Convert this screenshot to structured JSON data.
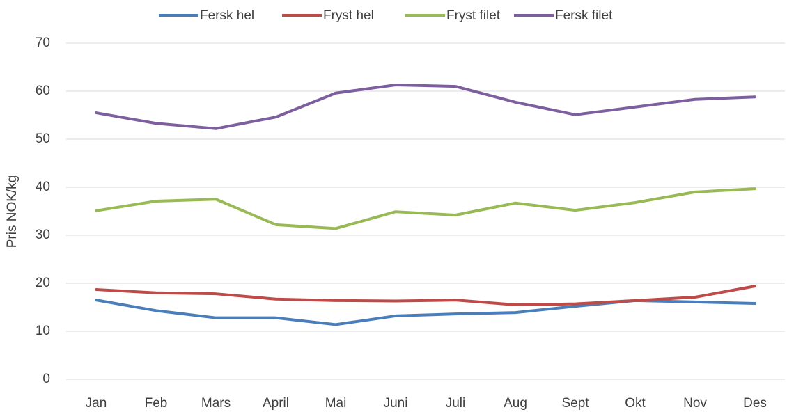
{
  "chart_data": {
    "type": "line",
    "y_label": "Pris NOK/kg",
    "categories": [
      "Jan",
      "Feb",
      "Mars",
      "April",
      "Mai",
      "Juni",
      "Juli",
      "Aug",
      "Sept",
      "Okt",
      "Nov",
      "Des"
    ],
    "series": [
      {
        "name": "Fersk hel",
        "color": "#4a7ebb",
        "values": [
          16.5,
          14.3,
          12.8,
          12.8,
          11.4,
          13.2,
          13.6,
          13.9,
          15.2,
          16.4,
          16.1,
          15.8
        ]
      },
      {
        "name": "Fryst hel",
        "color": "#be4b48",
        "values": [
          18.7,
          18.0,
          17.8,
          16.7,
          16.4,
          16.3,
          16.5,
          15.5,
          15.7,
          16.4,
          17.1,
          19.4
        ]
      },
      {
        "name": "Fryst filet",
        "color": "#98b954",
        "values": [
          35.1,
          37.1,
          37.5,
          32.2,
          31.4,
          34.9,
          34.2,
          36.7,
          35.2,
          36.8,
          39.0,
          39.7
        ]
      },
      {
        "name": "Fersk filet",
        "color": "#7d5fa0",
        "values": [
          55.5,
          53.3,
          52.2,
          54.6,
          59.6,
          61.3,
          61.0,
          57.7,
          55.1,
          56.7,
          58.3,
          58.8
        ]
      }
    ],
    "ylim": [
      0,
      70
    ],
    "yticks": [
      0,
      10,
      20,
      30,
      40,
      50,
      60,
      70
    ],
    "grid": true,
    "legend": "top"
  }
}
